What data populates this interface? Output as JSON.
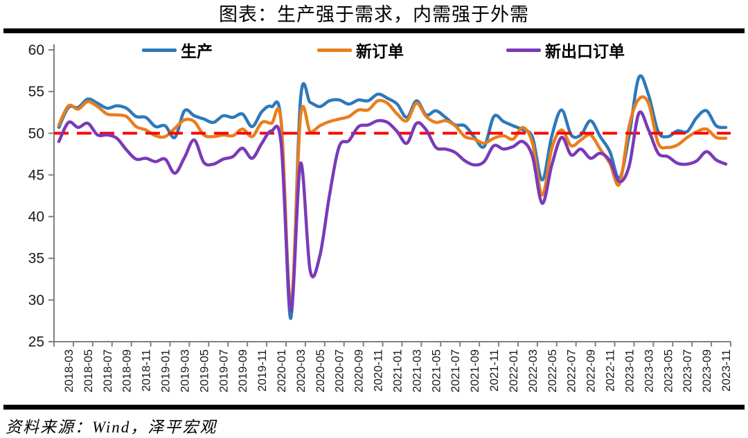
{
  "page": {
    "title": "图表：生产强于需求，内需强于外需",
    "source": "资料来源：Wind，泽平宏观"
  },
  "colors": {
    "production": "#2E79B9",
    "new_orders": "#E87E1E",
    "new_export_orders": "#7A3AB8",
    "reference_line": "#FF0000",
    "axis": "#7F7F7F",
    "tick_text": "#1a1a1a",
    "divider": "#000000"
  },
  "chart_data": {
    "type": "line",
    "title": "图表：生产强于需求，内需强于外需",
    "xlabel": "",
    "ylabel": "",
    "ylim": [
      25,
      60
    ],
    "yticks": [
      25,
      30,
      35,
      40,
      45,
      50,
      55,
      60
    ],
    "grid": false,
    "legend_position": "top",
    "reference_line_y": 50,
    "reference_line_style": "dashed",
    "x": [
      "2018-02",
      "2018-03",
      "2018-04",
      "2018-05",
      "2018-06",
      "2018-07",
      "2018-08",
      "2018-09",
      "2018-10",
      "2018-11",
      "2018-12",
      "2019-01",
      "2019-02",
      "2019-03",
      "2019-04",
      "2019-05",
      "2019-06",
      "2019-07",
      "2019-08",
      "2019-09",
      "2019-10",
      "2019-11",
      "2019-12",
      "2020-01",
      "2020-02",
      "2020-03",
      "2020-04",
      "2020-05",
      "2020-06",
      "2020-07",
      "2020-08",
      "2020-09",
      "2020-10",
      "2020-11",
      "2020-12",
      "2021-01",
      "2021-02",
      "2021-03",
      "2021-04",
      "2021-05",
      "2021-06",
      "2021-07",
      "2021-08",
      "2021-09",
      "2021-10",
      "2021-11",
      "2021-12",
      "2022-01",
      "2022-02",
      "2022-03",
      "2022-04",
      "2022-05",
      "2022-06",
      "2022-07",
      "2022-08",
      "2022-09",
      "2022-10",
      "2022-11",
      "2022-12",
      "2023-01",
      "2023-02",
      "2023-03",
      "2023-04",
      "2023-05",
      "2023-06",
      "2023-07",
      "2023-08",
      "2023-09",
      "2023-10",
      "2023-11"
    ],
    "x_tick_labels": [
      "2018-03",
      "2018-05",
      "2018-07",
      "2018-09",
      "2018-11",
      "2019-01",
      "2019-03",
      "2019-05",
      "2019-07",
      "2019-09",
      "2019-11",
      "2020-01",
      "2020-03",
      "2020-05",
      "2020-07",
      "2020-09",
      "2020-11",
      "2021-01",
      "2021-03",
      "2021-05",
      "2021-07",
      "2021-09",
      "2021-11",
      "2022-01",
      "2022-03",
      "2022-05",
      "2022-07",
      "2022-09",
      "2022-11",
      "2023-01",
      "2023-03",
      "2023-05",
      "2023-07",
      "2023-09",
      "2023-11"
    ],
    "series": [
      {
        "name": "生产",
        "color": "#2E79B9",
        "values": [
          50.7,
          53.1,
          53.1,
          54.1,
          53.6,
          53.0,
          53.3,
          53.0,
          52.0,
          51.9,
          50.8,
          50.9,
          49.5,
          52.7,
          52.1,
          51.7,
          51.3,
          52.1,
          51.9,
          52.3,
          50.8,
          52.6,
          53.2,
          51.3,
          27.8,
          54.1,
          53.7,
          53.2,
          53.9,
          54.0,
          53.5,
          54.0,
          53.9,
          54.7,
          54.2,
          53.5,
          51.9,
          53.9,
          52.2,
          52.7,
          51.9,
          51.0,
          50.9,
          49.5,
          48.4,
          52.0,
          51.4,
          50.9,
          50.4,
          49.5,
          44.4,
          49.7,
          52.8,
          49.8,
          49.8,
          51.5,
          49.6,
          47.8,
          44.6,
          49.8,
          56.7,
          54.6,
          50.2,
          49.6,
          50.3,
          50.2,
          51.9,
          52.7,
          50.9,
          50.7
        ]
      },
      {
        "name": "新订单",
        "color": "#E87E1E",
        "values": [
          51.0,
          53.3,
          52.9,
          53.8,
          53.2,
          52.3,
          52.2,
          52.0,
          50.8,
          50.4,
          49.7,
          49.6,
          50.6,
          51.6,
          51.4,
          49.8,
          49.6,
          49.8,
          49.7,
          50.5,
          49.6,
          51.3,
          51.2,
          51.4,
          29.3,
          52.0,
          50.2,
          50.9,
          51.4,
          51.7,
          52.0,
          52.8,
          52.8,
          53.9,
          53.6,
          52.3,
          51.5,
          53.6,
          52.0,
          51.3,
          51.5,
          50.9,
          49.6,
          49.3,
          48.8,
          49.4,
          49.7,
          49.3,
          50.7,
          48.8,
          42.6,
          48.2,
          50.4,
          48.5,
          49.2,
          49.8,
          48.1,
          46.4,
          43.9,
          50.9,
          54.1,
          53.6,
          48.8,
          48.3,
          48.6,
          49.5,
          50.2,
          50.5,
          49.5,
          49.4
        ]
      },
      {
        "name": "新出口订单",
        "color": "#7A3AB8",
        "values": [
          49.0,
          51.3,
          50.7,
          51.2,
          49.8,
          49.8,
          49.4,
          48.0,
          46.9,
          47.0,
          46.6,
          46.9,
          45.2,
          47.1,
          49.2,
          46.5,
          46.3,
          46.9,
          47.2,
          48.2,
          47.0,
          48.8,
          50.3,
          48.7,
          28.7,
          46.4,
          33.5,
          35.3,
          42.6,
          48.4,
          49.1,
          50.8,
          51.0,
          51.5,
          51.3,
          50.2,
          48.8,
          51.2,
          50.4,
          48.3,
          48.1,
          47.7,
          46.7,
          46.2,
          46.6,
          48.5,
          48.1,
          48.4,
          49.0,
          47.2,
          41.6,
          46.2,
          49.5,
          47.4,
          48.1,
          47.0,
          47.6,
          46.7,
          44.2,
          46.1,
          52.4,
          50.4,
          47.6,
          47.2,
          46.4,
          46.3,
          46.7,
          47.8,
          46.8,
          46.3
        ]
      }
    ]
  }
}
